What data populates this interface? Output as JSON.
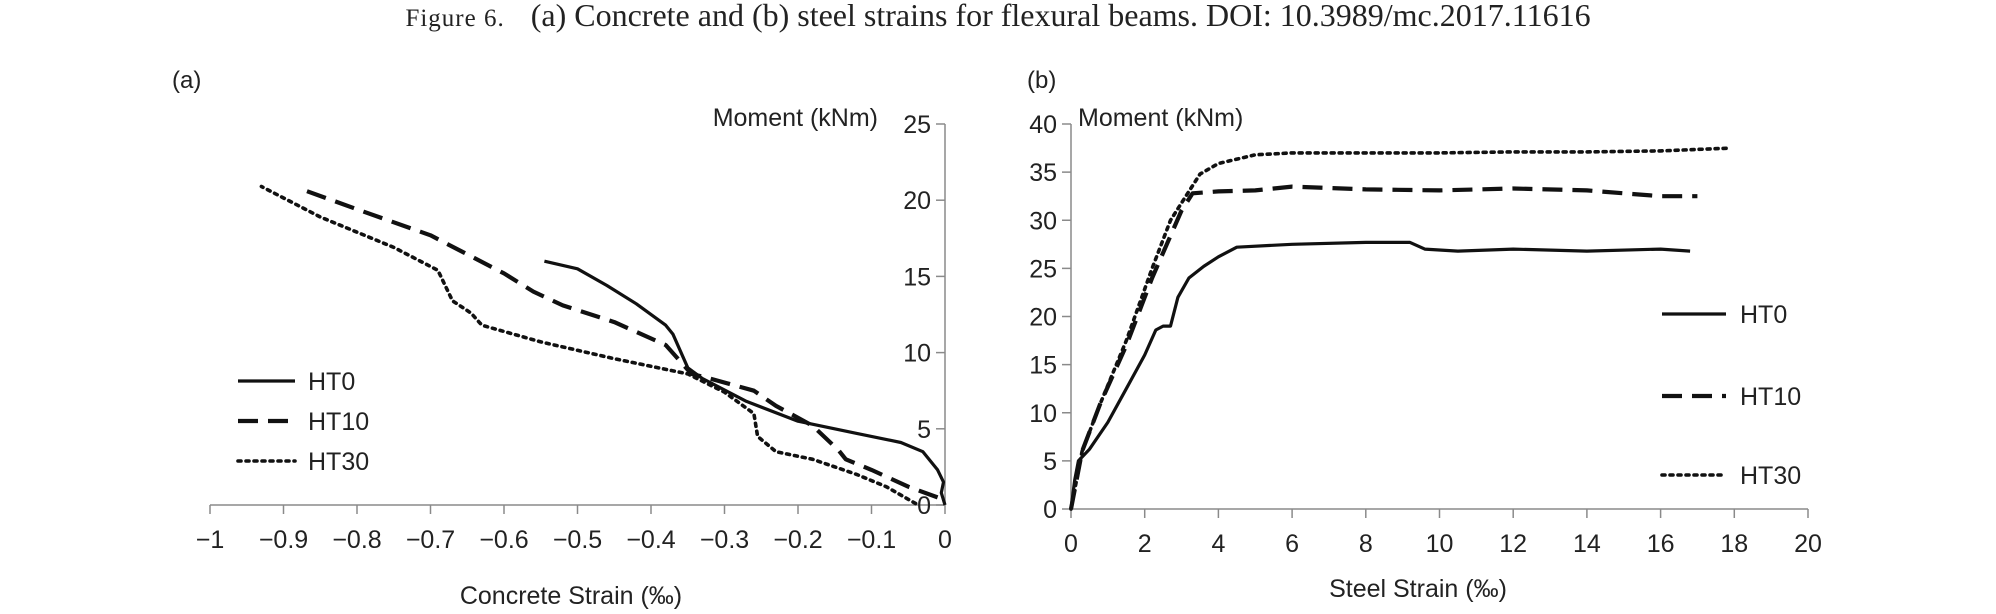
{
  "figure": {
    "caption_prefix": "Figure 6.",
    "caption_text": "(a) Concrete and (b) steel strains for flexural beams. DOI: 10.3989/mc.2017.11616"
  },
  "chart_data": [
    {
      "panel_label": "(a)",
      "type": "line",
      "xlabel": "Concrete Strain (‰)",
      "ylabel": "Moment (kNm)",
      "xlim": [
        -1,
        0
      ],
      "ylim": [
        0,
        25
      ],
      "xticks": [
        -1,
        -0.9,
        -0.8,
        -0.7,
        -0.6,
        -0.5,
        -0.4,
        -0.3,
        -0.2,
        -0.1,
        0
      ],
      "xtick_labels": [
        "−1",
        "−0.9",
        "−0.8",
        "−0.7",
        "−0.6",
        "−0.5",
        "−0.4",
        "−0.3",
        "−0.2",
        "−0.1",
        "0"
      ],
      "yticks": [
        0,
        5,
        10,
        15,
        20,
        25
      ],
      "ytick_labels": [
        "0",
        "5",
        "10",
        "15",
        "20",
        "25"
      ],
      "y_axis_side": "right",
      "grid": false,
      "legend_position": "bottom-left",
      "series": [
        {
          "name": "HT0",
          "style": "solid",
          "points": [
            [
              0,
              0
            ],
            [
              -0.005,
              0.8
            ],
            [
              -0.002,
              1.5
            ],
            [
              -0.01,
              2.3
            ],
            [
              -0.03,
              3.5
            ],
            [
              -0.06,
              4.1
            ],
            [
              -0.12,
              4.7
            ],
            [
              -0.2,
              5.5
            ],
            [
              -0.27,
              6.8
            ],
            [
              -0.33,
              8.3
            ],
            [
              -0.35,
              9.0
            ],
            [
              -0.37,
              11.2
            ],
            [
              -0.38,
              11.8
            ],
            [
              -0.42,
              13.2
            ],
            [
              -0.46,
              14.4
            ],
            [
              -0.5,
              15.5
            ],
            [
              -0.545,
              16.0
            ]
          ]
        },
        {
          "name": "HT10",
          "style": "dashed",
          "points": [
            [
              -0.01,
              0.5
            ],
            [
              -0.05,
              1.2
            ],
            [
              -0.1,
              2.3
            ],
            [
              -0.135,
              3.0
            ],
            [
              -0.145,
              3.6
            ],
            [
              -0.18,
              5.2
            ],
            [
              -0.23,
              6.5
            ],
            [
              -0.26,
              7.5
            ],
            [
              -0.32,
              8.3
            ],
            [
              -0.345,
              8.6
            ],
            [
              -0.38,
              10.5
            ],
            [
              -0.45,
              12.0
            ],
            [
              -0.52,
              13.1
            ],
            [
              -0.56,
              14.0
            ],
            [
              -0.6,
              15.2
            ],
            [
              -0.7,
              17.7
            ],
            [
              -0.8,
              19.4
            ],
            [
              -0.88,
              20.8
            ]
          ]
        },
        {
          "name": "HT30",
          "style": "dotted",
          "points": [
            [
              -0.04,
              0.1
            ],
            [
              -0.08,
              1.2
            ],
            [
              -0.12,
              2.0
            ],
            [
              -0.18,
              3.0
            ],
            [
              -0.23,
              3.5
            ],
            [
              -0.255,
              4.5
            ],
            [
              -0.26,
              6.0
            ],
            [
              -0.3,
              7.4
            ],
            [
              -0.35,
              8.6
            ],
            [
              -0.45,
              9.6
            ],
            [
              -0.55,
              10.7
            ],
            [
              -0.63,
              11.8
            ],
            [
              -0.645,
              12.6
            ],
            [
              -0.67,
              13.4
            ],
            [
              -0.69,
              15.4
            ],
            [
              -0.75,
              16.9
            ],
            [
              -0.85,
              18.9
            ],
            [
              -0.93,
              20.9
            ]
          ]
        }
      ]
    },
    {
      "panel_label": "(b)",
      "type": "line",
      "xlabel": "Steel Strain (‰)",
      "ylabel": "Moment (kNm)",
      "xlim": [
        0,
        20
      ],
      "ylim": [
        0,
        40
      ],
      "xticks": [
        0,
        2,
        4,
        6,
        8,
        10,
        12,
        14,
        16,
        18,
        20
      ],
      "xtick_labels": [
        "0",
        "2",
        "4",
        "6",
        "8",
        "10",
        "12",
        "14",
        "16",
        "18",
        "20"
      ],
      "yticks": [
        0,
        5,
        10,
        15,
        20,
        25,
        30,
        35,
        40
      ],
      "ytick_labels": [
        "0",
        "5",
        "10",
        "15",
        "20",
        "25",
        "30",
        "35",
        "40"
      ],
      "y_axis_side": "left",
      "grid": false,
      "legend_position": "right",
      "series": [
        {
          "name": "HT0",
          "style": "solid",
          "points": [
            [
              0,
              0
            ],
            [
              0.1,
              3.0
            ],
            [
              0.2,
              5.0
            ],
            [
              0.5,
              6.2
            ],
            [
              1.0,
              9.0
            ],
            [
              1.5,
              12.5
            ],
            [
              2.0,
              16.0
            ],
            [
              2.3,
              18.6
            ],
            [
              2.5,
              19.0
            ],
            [
              2.7,
              19.0
            ],
            [
              2.9,
              22.0
            ],
            [
              3.2,
              24.0
            ],
            [
              3.6,
              25.2
            ],
            [
              4.0,
              26.2
            ],
            [
              4.5,
              27.2
            ],
            [
              6.0,
              27.5
            ],
            [
              8.0,
              27.7
            ],
            [
              9.2,
              27.7
            ],
            [
              9.6,
              27.0
            ],
            [
              10.5,
              26.8
            ],
            [
              12.0,
              27.0
            ],
            [
              14.0,
              26.8
            ],
            [
              16.0,
              27.0
            ],
            [
              16.8,
              26.8
            ]
          ]
        },
        {
          "name": "HT10",
          "style": "dashed",
          "points": [
            [
              0,
              0
            ],
            [
              0.3,
              6.0
            ],
            [
              0.8,
              11.0
            ],
            [
              1.5,
              17.0
            ],
            [
              2.2,
              24.0
            ],
            [
              2.6,
              27.5
            ],
            [
              3.0,
              31.0
            ],
            [
              3.3,
              32.8
            ],
            [
              4.0,
              33.0
            ],
            [
              5.0,
              33.1
            ],
            [
              6.0,
              33.5
            ],
            [
              8.0,
              33.2
            ],
            [
              10.0,
              33.1
            ],
            [
              12.0,
              33.3
            ],
            [
              14.0,
              33.1
            ],
            [
              16.0,
              32.5
            ],
            [
              17.0,
              32.5
            ]
          ]
        },
        {
          "name": "HT30",
          "style": "dotted",
          "points": [
            [
              0,
              0
            ],
            [
              0.3,
              6.0
            ],
            [
              0.8,
              11.0
            ],
            [
              1.5,
              17.5
            ],
            [
              2.2,
              25.0
            ],
            [
              2.7,
              30.0
            ],
            [
              3.2,
              33.0
            ],
            [
              3.5,
              34.8
            ],
            [
              4.0,
              35.9
            ],
            [
              5.0,
              36.8
            ],
            [
              6.0,
              37.0
            ],
            [
              8.0,
              37.0
            ],
            [
              10.0,
              37.0
            ],
            [
              12.0,
              37.1
            ],
            [
              14.0,
              37.1
            ],
            [
              16.0,
              37.2
            ],
            [
              17.9,
              37.5
            ]
          ]
        }
      ]
    }
  ]
}
